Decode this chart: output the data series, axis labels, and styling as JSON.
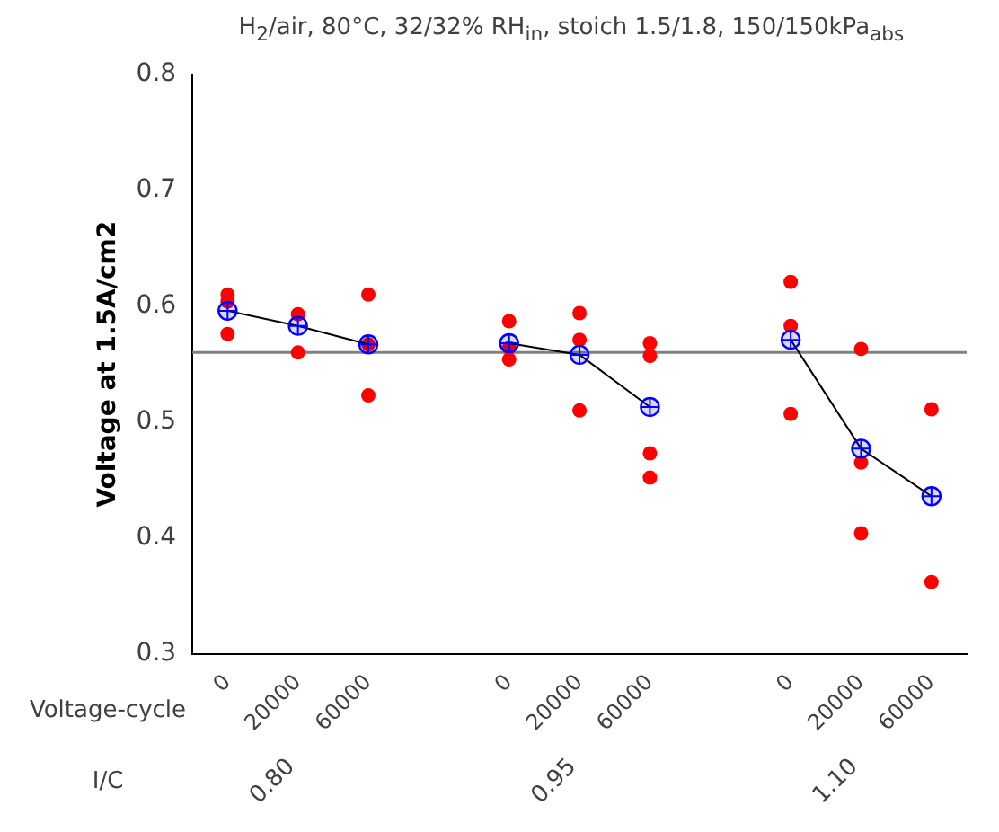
{
  "chart_data": {
    "type": "scatter",
    "title": "H$_{2}$/air, 80°C, 32/32% RH$_{in}$, stoich 1.5/1.8, 150/150kPa$_{abs}$",
    "ylabel": "Voltage at 1.5A/cm2",
    "categories": [
      "0",
      "20000",
      "60000",
      null,
      "0",
      "20000",
      "60000",
      null,
      "0",
      "20000",
      "60000"
    ],
    "series": [
      {
        "color": "#ff0000",
        "marker": "circle",
        "values": [
          0.61,
          0.593,
          0.61,
          null,
          0.587,
          0.594,
          0.568,
          null,
          0.621,
          0.563,
          0.511
        ]
      },
      {
        "color": "#ff0000",
        "marker": "circle",
        "values": [
          0.604,
          0.56,
          0.567,
          null,
          0.564,
          0.571,
          0.557,
          null,
          0.583,
          0.465,
          0.362
        ]
      },
      {
        "color": "#ff0000",
        "marker": "circle",
        "values": [
          0.576,
          null,
          0.523,
          null,
          0.554,
          0.51,
          0.473,
          null,
          0.507,
          0.404,
          null
        ]
      },
      {
        "color": "#ff0000",
        "marker": "circle",
        "values": [
          null,
          null,
          null,
          null,
          null,
          null,
          0.452,
          null,
          null,
          null,
          null
        ]
      },
      {
        "type": "line",
        "color": "#0000ff",
        "marker": "circle",
        "values": [
          0.596,
          0.583,
          0.567,
          null,
          0.568,
          0.558,
          0.513,
          null,
          0.571,
          0.477,
          0.436
        ]
      }
    ],
    "ylim": [
      0.3,
      0.8
    ],
    "yticks": [
      0.3,
      0.4,
      0.5,
      0.6,
      0.7,
      0.8
    ],
    "ref_lines": [
      {
        "axis": "y",
        "value": 0.56,
        "color": "#808080"
      }
    ],
    "annotations": [
      "Voltage-cycle",
      "I/C",
      "0.80",
      "0.95",
      "1.10"
    ],
    "grid": false,
    "legend": false
  }
}
